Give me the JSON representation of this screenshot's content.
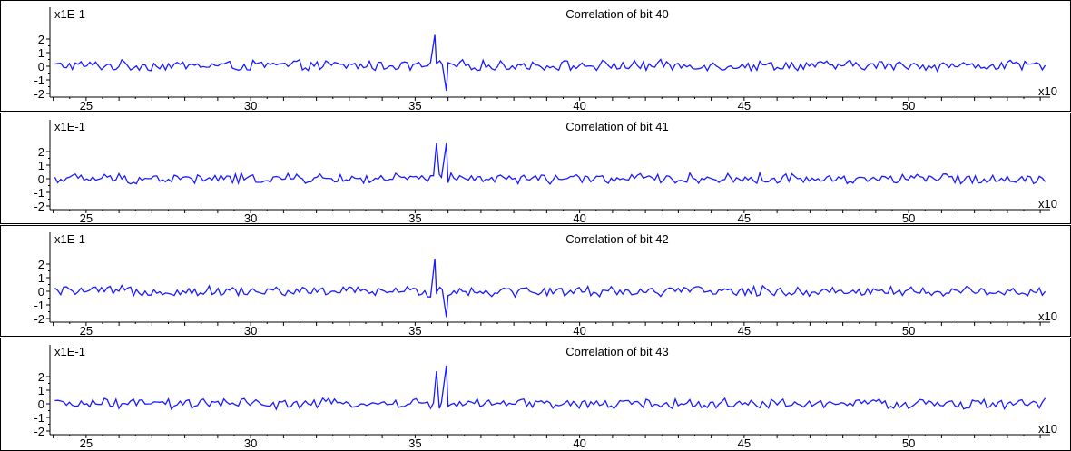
{
  "chart_data": [
    {
      "type": "line",
      "title": "Correlation of bit 40",
      "y_multiplier_label": "x1E-1",
      "x_multiplier_label": "x10",
      "xlim": [
        23.9,
        54.3
      ],
      "ylim": [
        -2,
        3
      ],
      "x_ticks": [
        25,
        30,
        35,
        40,
        45,
        50
      ],
      "y_ticks": [
        -2,
        -1,
        0,
        1,
        2
      ],
      "grid": false,
      "spikes": [
        {
          "x": 35.6,
          "y": 2.3
        },
        {
          "x": 35.75,
          "y": 0.4
        },
        {
          "x": 35.95,
          "y": -1.8
        }
      ],
      "series": [
        {
          "color": "#1a1aff",
          "baseline": 0.05,
          "noise": 0.45
        }
      ]
    },
    {
      "type": "line",
      "title": "Correlation of bit 41",
      "y_multiplier_label": "x1E-1",
      "x_multiplier_label": "x10",
      "xlim": [
        23.9,
        54.3
      ],
      "ylim": [
        -2,
        3
      ],
      "x_ticks": [
        25,
        30,
        35,
        40,
        45,
        50
      ],
      "y_ticks": [
        -2,
        -1,
        0,
        1,
        2
      ],
      "grid": false,
      "spikes": [
        {
          "x": 35.65,
          "y": 2.6
        },
        {
          "x": 35.8,
          "y": 0.1
        },
        {
          "x": 35.95,
          "y": 2.6
        }
      ],
      "series": [
        {
          "color": "#1a1aff",
          "baseline": 0.0,
          "noise": 0.45
        }
      ]
    },
    {
      "type": "line",
      "title": "Correlation of bit 42",
      "y_multiplier_label": "x1E-1",
      "x_multiplier_label": "x10",
      "xlim": [
        23.9,
        54.3
      ],
      "ylim": [
        -2,
        3
      ],
      "x_ticks": [
        25,
        30,
        35,
        40,
        45,
        50
      ],
      "y_ticks": [
        -2,
        -1,
        0,
        1,
        2
      ],
      "grid": false,
      "spikes": [
        {
          "x": 35.6,
          "y": 2.4
        },
        {
          "x": 35.75,
          "y": 0.3
        },
        {
          "x": 35.95,
          "y": -1.9
        }
      ],
      "series": [
        {
          "color": "#1a1aff",
          "baseline": 0.0,
          "noise": 0.45
        }
      ]
    },
    {
      "type": "line",
      "title": "Correlation of bit 43",
      "y_multiplier_label": "x1E-1",
      "x_multiplier_label": "x10",
      "xlim": [
        23.9,
        54.3
      ],
      "ylim": [
        -2,
        3
      ],
      "x_ticks": [
        25,
        30,
        35,
        40,
        45,
        50
      ],
      "y_ticks": [
        -2,
        -1,
        0,
        1,
        2
      ],
      "grid": false,
      "spikes": [
        {
          "x": 35.65,
          "y": 2.4
        },
        {
          "x": 35.8,
          "y": 0.1
        },
        {
          "x": 35.95,
          "y": 2.8
        }
      ],
      "series": [
        {
          "color": "#1a1aff",
          "baseline": 0.0,
          "noise": 0.45
        }
      ]
    }
  ]
}
